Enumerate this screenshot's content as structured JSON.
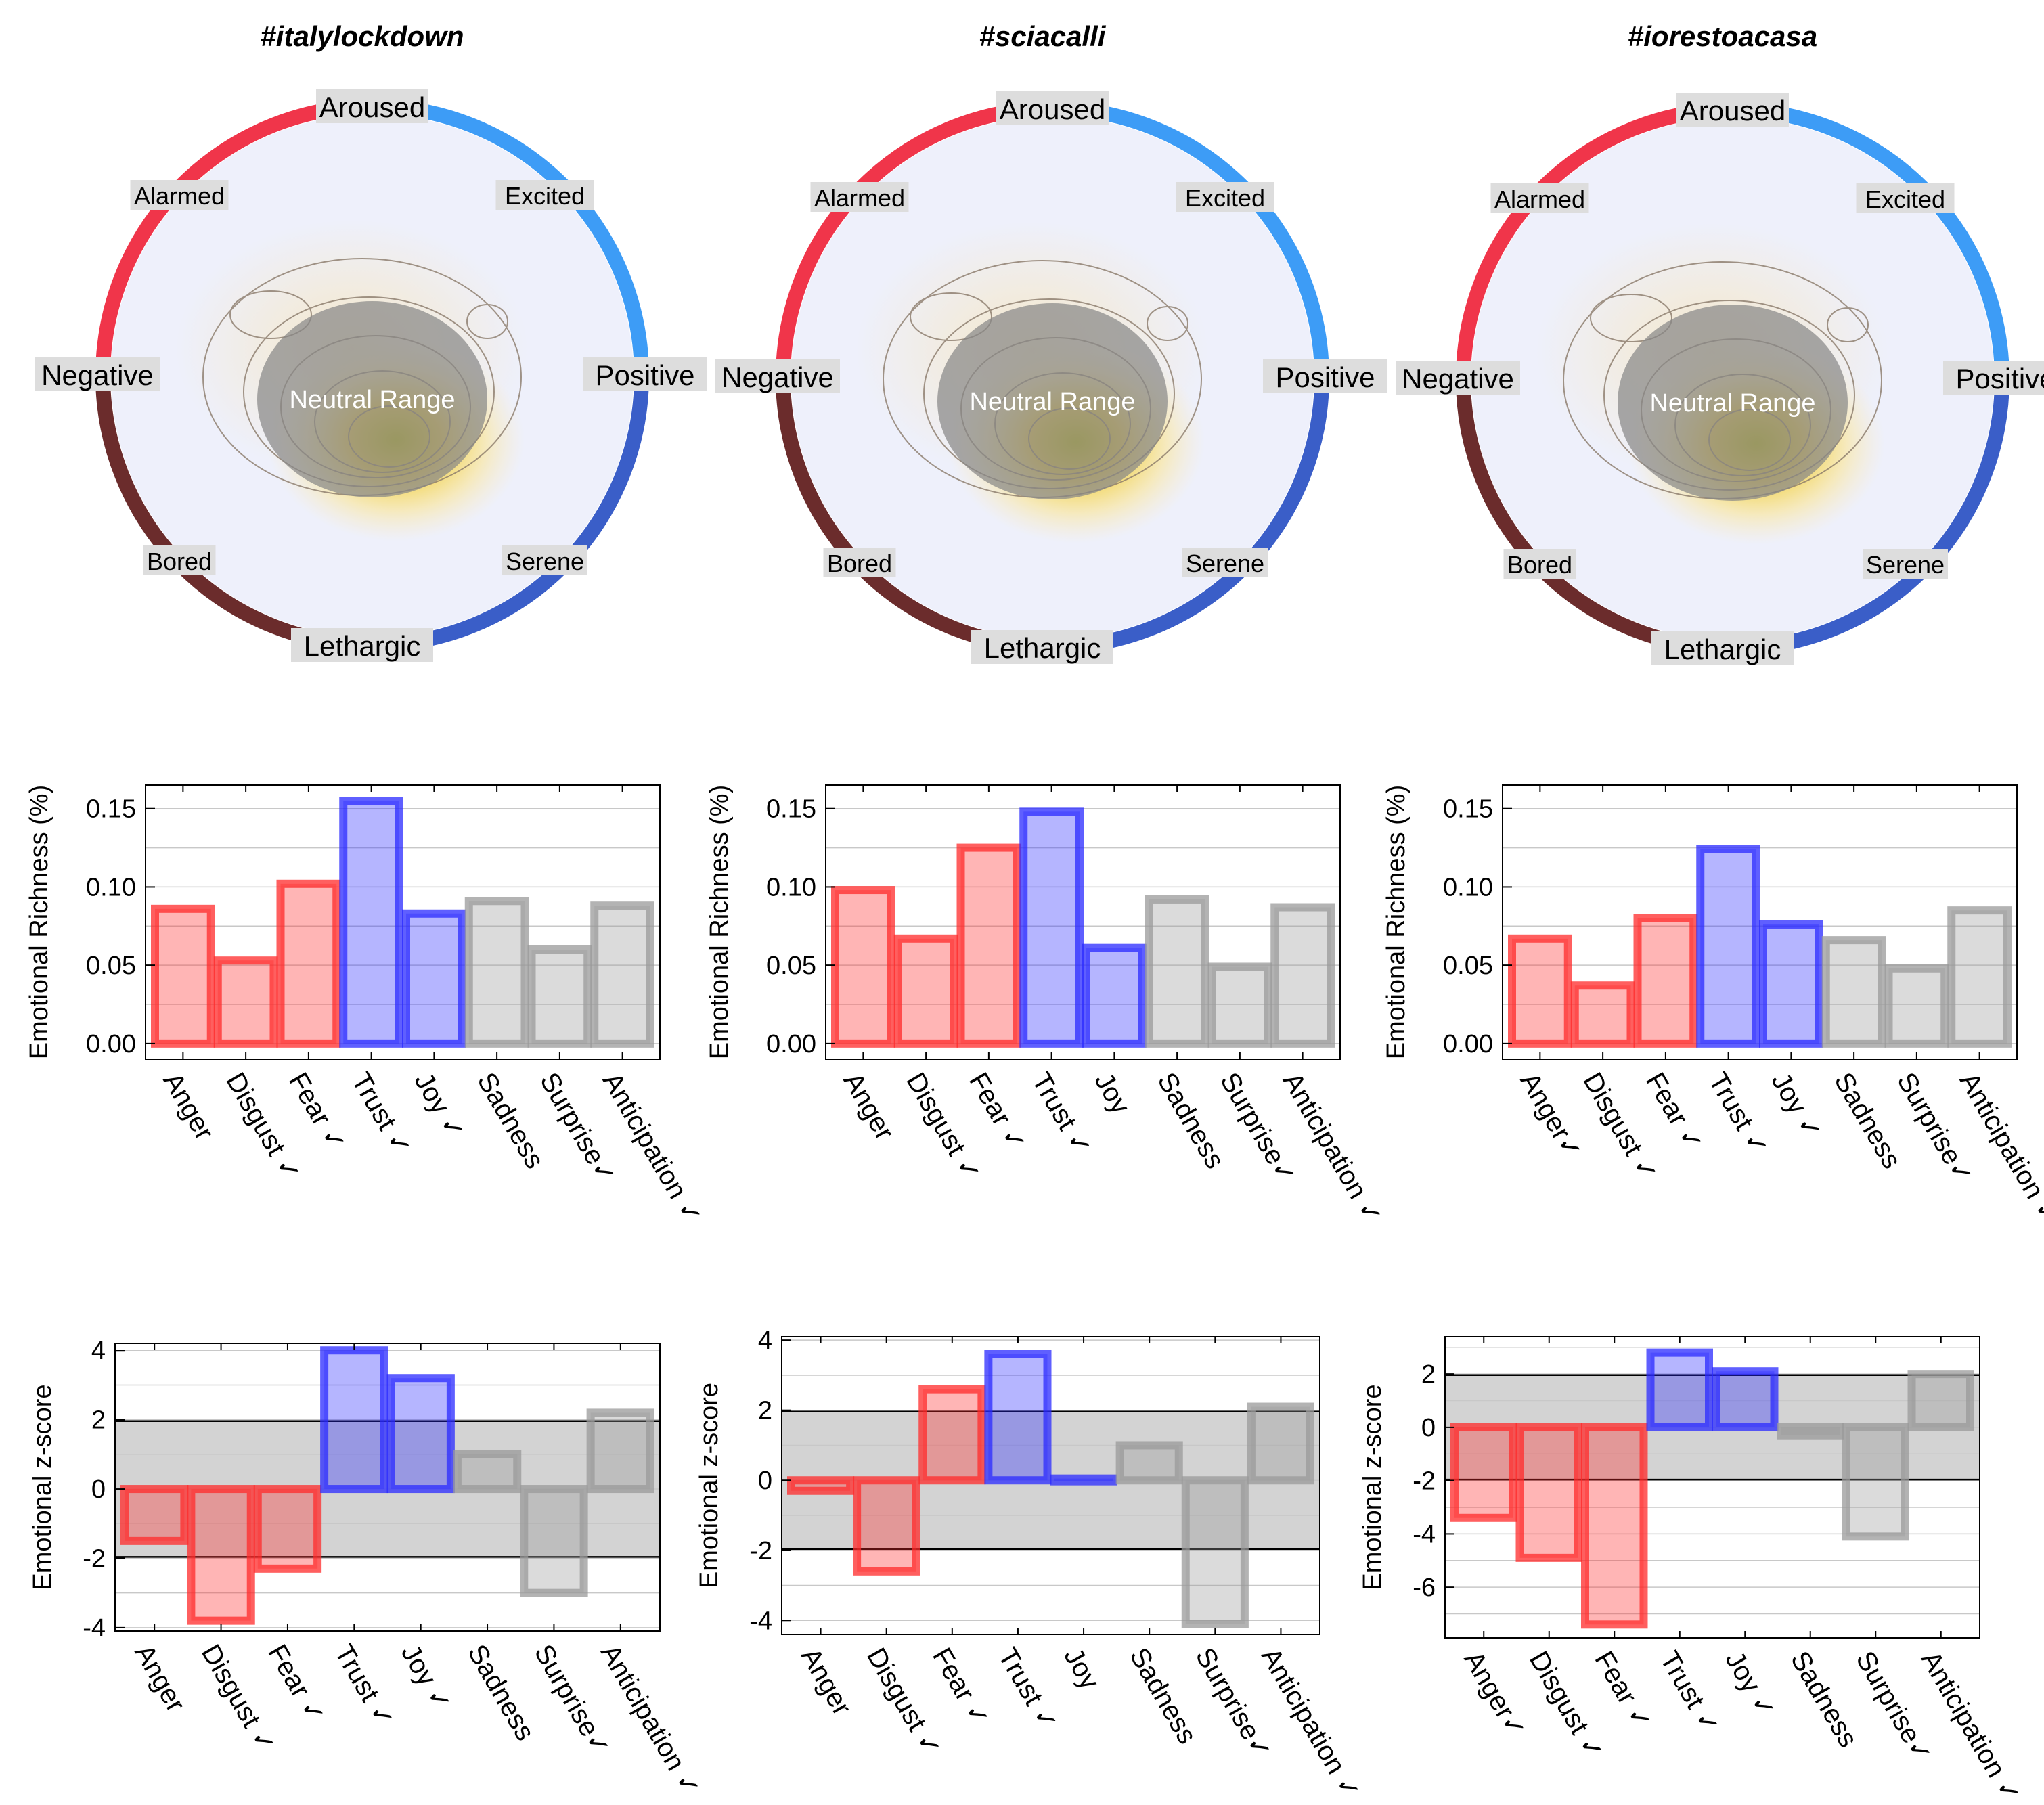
{
  "colors": {
    "red": "#ff2a2a",
    "blue": "#2a2aff",
    "gray": "#999999",
    "ring_red": "#f0354a",
    "ring_blue": "#3d9cf6",
    "ring_brown": "#6b2c2c",
    "ring_darkblue": "#3a5ec8",
    "disk": "#eef0fb"
  },
  "circumplex_labels": {
    "top": "Aroused",
    "bottom": "Lethargic",
    "left": "Negative",
    "right": "Positive",
    "upper_left": "Alarmed",
    "upper_right": "Excited",
    "lower_left": "Bored",
    "lower_right": "Serene",
    "neutral": "Neutral Range"
  },
  "richness_ylabel": "Emotional Richness (%)",
  "zscore_ylabel": "Emotional  z-score",
  "chart_data": [
    {
      "panel": "#italylockdown",
      "title": "#italylockdown",
      "richness": {
        "type": "bar",
        "categories": [
          "Anger",
          "Disgust",
          "Fear",
          "Trust",
          "Joy",
          "Sadness",
          "Surprise",
          "Anticipation"
        ],
        "category_labels": [
          "Anger",
          "Disgust ✓",
          "Fear ✓",
          "Trust ✓",
          "Joy ✓",
          "Sadness",
          "Surprise✓",
          "Anticipation ✓"
        ],
        "values": [
          0.086,
          0.053,
          0.102,
          0.155,
          0.083,
          0.091,
          0.06,
          0.088
        ],
        "ylim": [
          -0.01,
          0.165
        ],
        "yticks": [
          "0.00",
          "0.05",
          "0.10",
          "0.15"
        ],
        "ytick_values": [
          0.0,
          0.05,
          0.1,
          0.15
        ],
        "ylabel": "Emotional Richness (%)"
      },
      "zscore": {
        "type": "bar",
        "categories": [
          "Anger",
          "Disgust",
          "Fear",
          "Trust",
          "Joy",
          "Sadness",
          "Surprise",
          "Anticipation"
        ],
        "category_labels": [
          "Anger",
          "Disgust ✓",
          "Fear ✓",
          "Trust ✓",
          "Joy ✓",
          "Sadness",
          "Surprise✓",
          "Anticipation ✓"
        ],
        "values": [
          -1.5,
          -3.8,
          -2.3,
          4.0,
          3.2,
          1.0,
          -3.0,
          2.2
        ],
        "ylim": [
          -4.1,
          4.2
        ],
        "yticks": [
          "4",
          "2",
          "0",
          "-2",
          "-4"
        ],
        "ytick_values": [
          4,
          2,
          0,
          -2,
          -4
        ],
        "band": [
          -1.96,
          1.96
        ],
        "ylabel": "Emotional  z-score"
      }
    },
    {
      "panel": "#sciacalli",
      "title": "#sciacalli",
      "richness": {
        "type": "bar",
        "categories": [
          "Anger",
          "Disgust",
          "Fear",
          "Trust",
          "Joy",
          "Sadness",
          "Surprise",
          "Anticipation"
        ],
        "category_labels": [
          "Anger",
          "Disgust ✓",
          "Fear ✓",
          "Trust ✓",
          "Joy",
          "Sadness",
          "Surprise✓",
          "Anticipation ✓"
        ],
        "values": [
          0.098,
          0.067,
          0.125,
          0.148,
          0.061,
          0.092,
          0.049,
          0.087
        ],
        "ylim": [
          -0.01,
          0.165
        ],
        "yticks": [
          "0.00",
          "0.05",
          "0.10",
          "0.15"
        ],
        "ytick_values": [
          0.0,
          0.05,
          0.1,
          0.15
        ],
        "ylabel": "Emotional Richness (%)"
      },
      "zscore": {
        "type": "bar",
        "categories": [
          "Anger",
          "Disgust",
          "Fear",
          "Trust",
          "Joy",
          "Sadness",
          "Surprise",
          "Anticipation"
        ],
        "category_labels": [
          "Anger",
          "Disgust ✓",
          "Fear ✓",
          "Trust ✓",
          "Joy",
          "Sadness",
          "Surprise✓",
          "Anticipation ✓"
        ],
        "values": [
          -0.3,
          -2.6,
          2.6,
          3.6,
          0.05,
          1.0,
          -4.1,
          2.1
        ],
        "ylim": [
          -4.4,
          4.1
        ],
        "yticks": [
          "4",
          "2",
          "0",
          "-2",
          "-4"
        ],
        "ytick_values": [
          4,
          2,
          0,
          -2,
          -4
        ],
        "band": [
          -1.96,
          1.96
        ],
        "ylabel": "Emotional  z-score"
      }
    },
    {
      "panel": "#iorestoacasa",
      "title": "#iorestoacasa",
      "richness": {
        "type": "bar",
        "categories": [
          "Anger",
          "Disgust",
          "Fear",
          "Trust",
          "Joy",
          "Sadness",
          "Surprise",
          "Anticipation"
        ],
        "category_labels": [
          "Anger✓",
          "Disgust ✓",
          "Fear ✓",
          "Trust ✓",
          "Joy ✓",
          "Sadness",
          "Surprise✓",
          "Anticipation ✓"
        ],
        "values": [
          0.067,
          0.037,
          0.08,
          0.124,
          0.076,
          0.066,
          0.048,
          0.085
        ],
        "ylim": [
          -0.01,
          0.165
        ],
        "yticks": [
          "0.00",
          "0.05",
          "0.10",
          "0.15"
        ],
        "ytick_values": [
          0.0,
          0.05,
          0.1,
          0.15
        ],
        "ylabel": "Emotional Richness (%)"
      },
      "zscore": {
        "type": "bar",
        "categories": [
          "Anger",
          "Disgust",
          "Fear",
          "Trust",
          "Joy",
          "Sadness",
          "Surprise",
          "Anticipation"
        ],
        "category_labels": [
          "Anger✓",
          "Disgust ✓",
          "Fear ✓",
          "Trust ✓",
          "Joy ✓",
          "Sadness",
          "Surprise✓",
          "Anticipation ✓"
        ],
        "values": [
          -3.4,
          -4.9,
          -7.4,
          2.8,
          2.1,
          -0.3,
          -4.1,
          2.0
        ],
        "ylim": [
          -7.9,
          3.4
        ],
        "yticks": [
          "2",
          "0",
          "-2",
          "-4",
          "-6"
        ],
        "ytick_values": [
          2,
          0,
          -2,
          -4,
          -6
        ],
        "band": [
          -1.96,
          1.96
        ],
        "ylabel": "Emotional  z-score"
      }
    }
  ]
}
